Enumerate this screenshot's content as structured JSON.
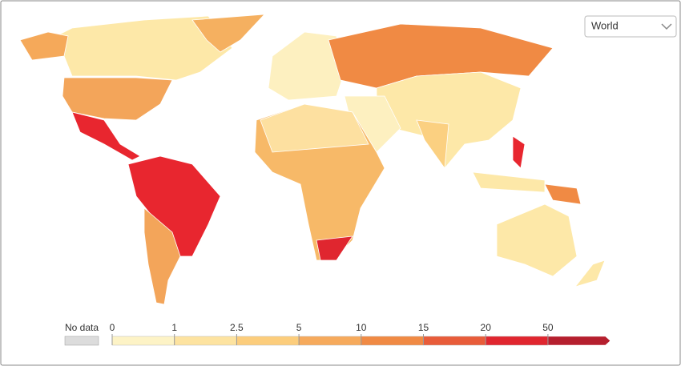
{
  "map": {
    "selector": "World",
    "legend": {
      "no_data_label": "No data",
      "no_data_color": "#dcdcdc",
      "ticks": [
        0,
        1,
        2.5,
        5,
        10,
        15,
        20,
        50
      ],
      "colors": [
        "#fdf3c6",
        "#fde3a0",
        "#fccd7c",
        "#f6aa5c",
        "#f08a44",
        "#e85c3a",
        "#e0262f",
        "#b51f2e"
      ]
    }
  }
}
